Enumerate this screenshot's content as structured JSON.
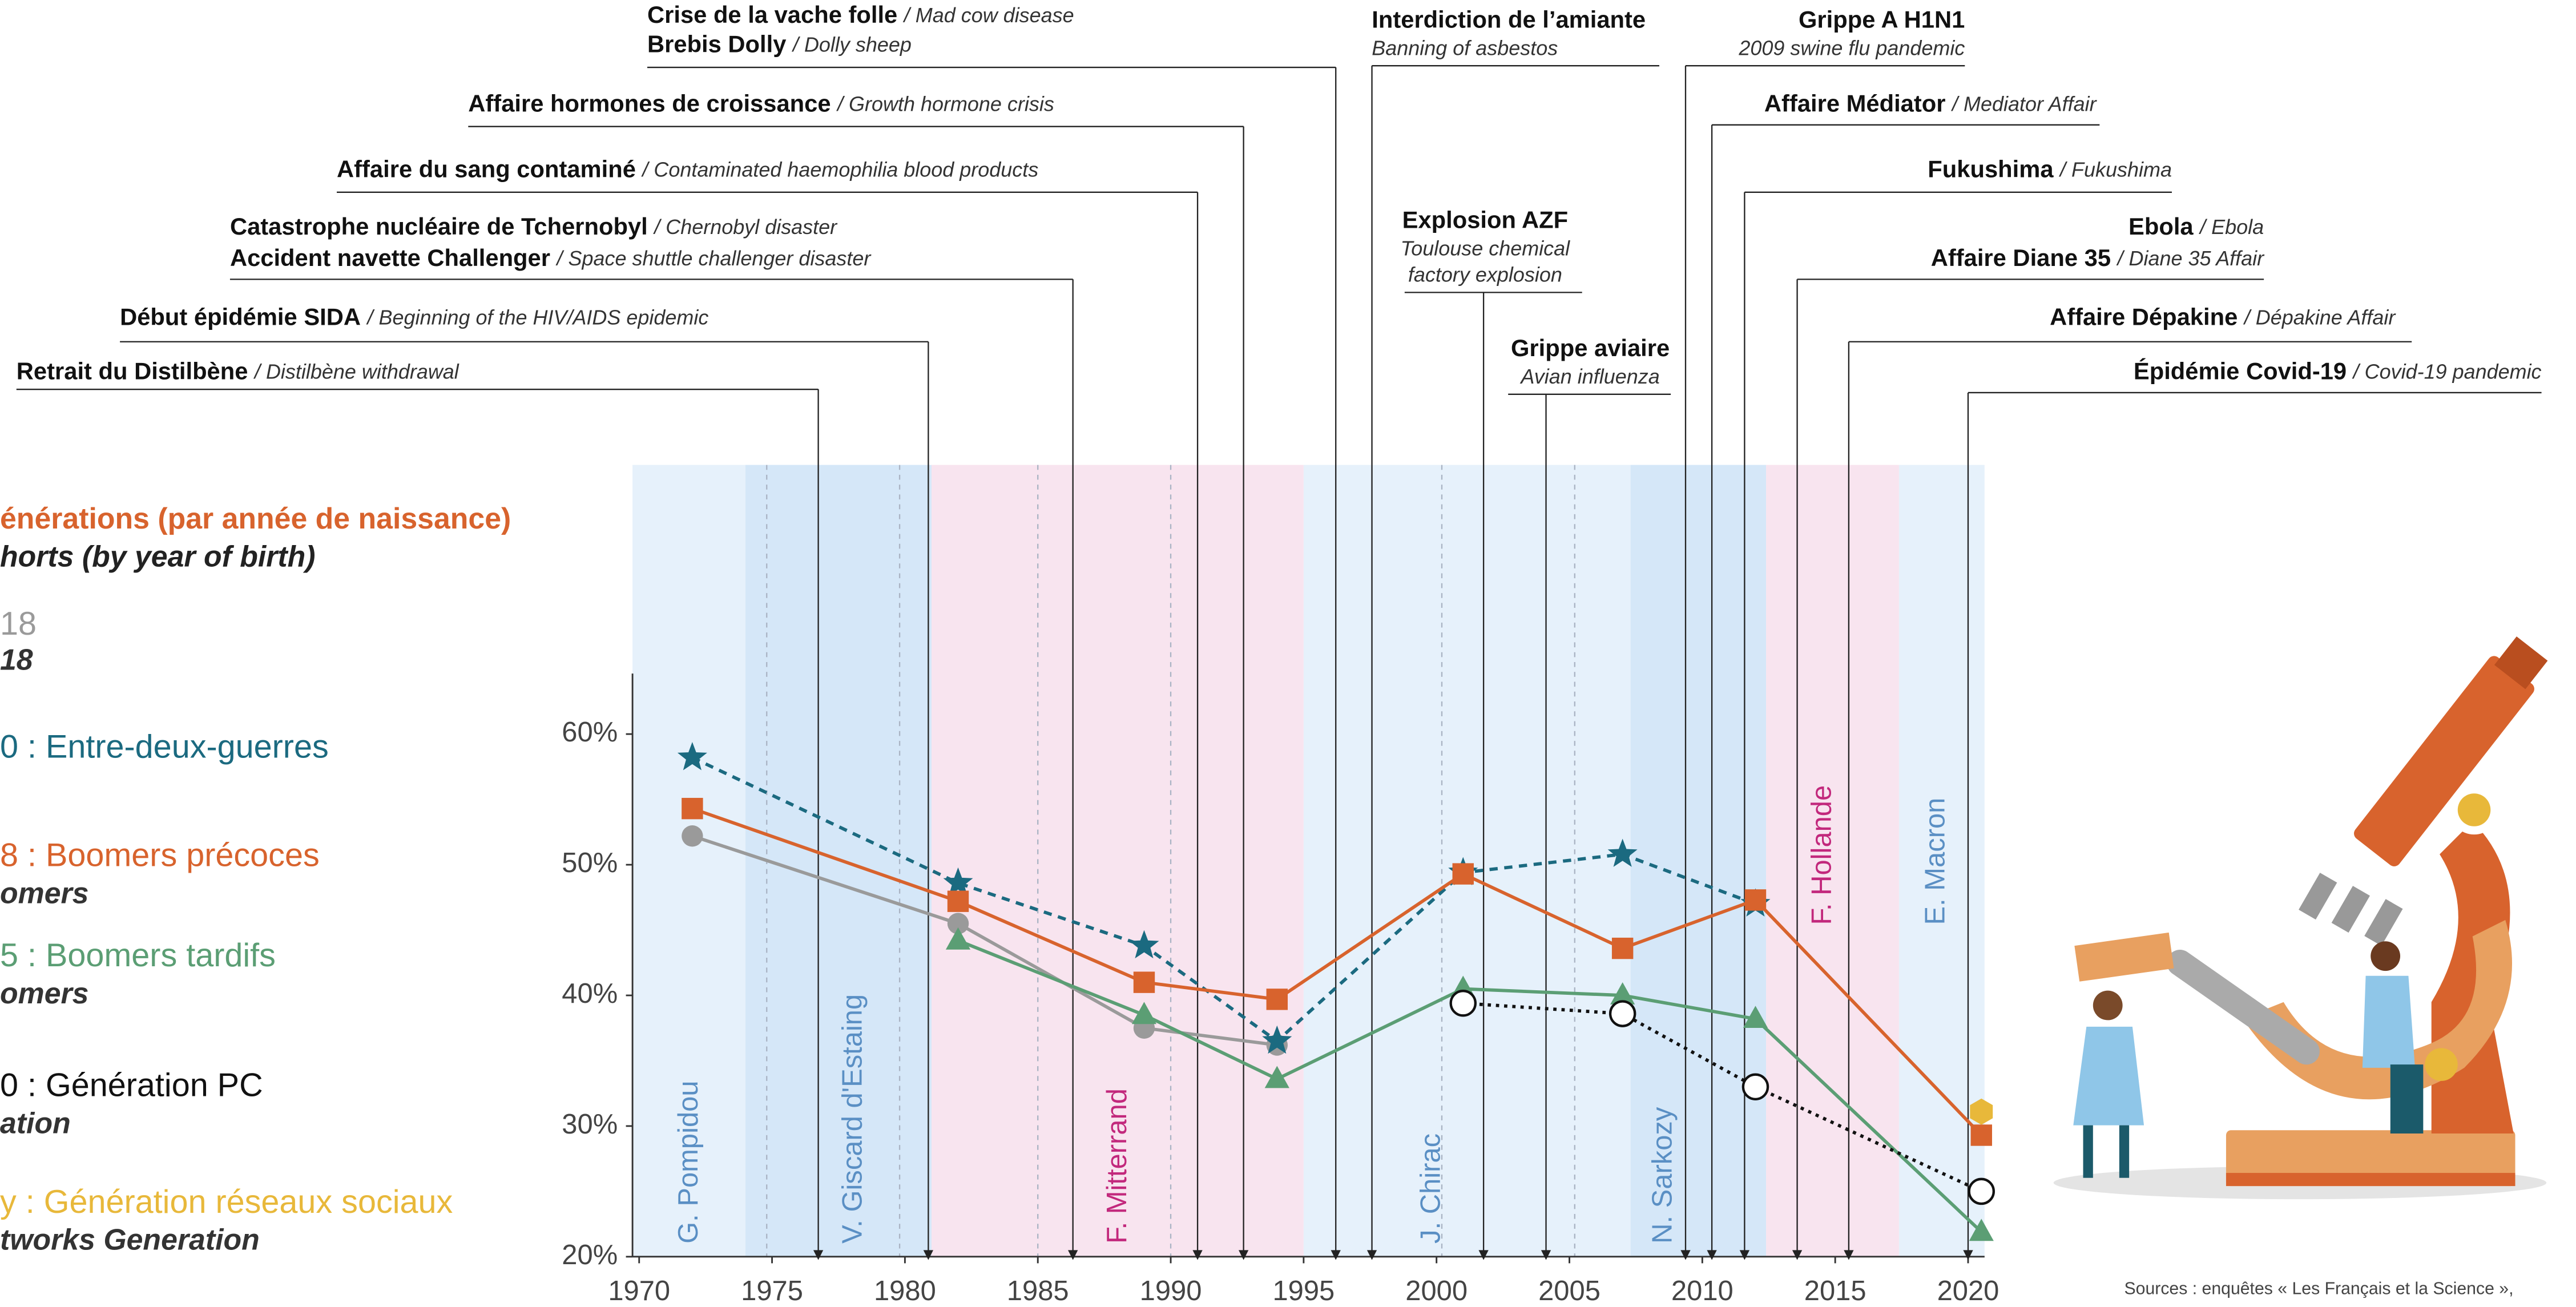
{
  "chart_data": {
    "type": "line",
    "legend_title": "énérations (par année de naissance)",
    "legend_subtitle": "horts (by year of birth)",
    "source": "Sources : enquêtes « Les Français et la Science »,",
    "x": [
      1972,
      1982,
      1989,
      1994,
      2001,
      2007,
      2012,
      2020.5
    ],
    "xlim": [
      1969.75,
      2020.62
    ],
    "xticks": [
      1970,
      1975,
      1980,
      1985,
      1990,
      1995,
      2000,
      2005,
      2010,
      2015,
      2020
    ],
    "ylim": [
      20,
      80.6
    ],
    "yticks": [
      {
        "value": 20,
        "label": "20%"
      },
      {
        "value": 30,
        "label": "30%"
      },
      {
        "value": 40,
        "label": "40%"
      },
      {
        "value": 50,
        "label": "50%"
      },
      {
        "value": 60,
        "label": "60%"
      }
    ],
    "series": [
      {
        "name": "18",
        "name_en": "18",
        "color": "#9a9a9a",
        "marker": "circle",
        "dash": "solid",
        "values": [
          52.2,
          45.5,
          37.5,
          36.2,
          null,
          null,
          null,
          null
        ]
      },
      {
        "name": "0 : Entre-deux-guerres",
        "color": "#1b6a80",
        "marker": "star",
        "dash": "dashed",
        "values": [
          58.2,
          48.6,
          43.8,
          36.5,
          49.4,
          50.8,
          47.0,
          null
        ]
      },
      {
        "name": "8 : Boomers précoces",
        "name_en": "omers",
        "color": "#d8632d",
        "marker": "square",
        "dash": "solid",
        "values": [
          54.3,
          47.2,
          41.0,
          39.7,
          49.3,
          43.6,
          47.3,
          29.3
        ]
      },
      {
        "name": "5 : Boomers tardifs",
        "name_en": "omers",
        "color": "#5b9e74",
        "marker": "triangle",
        "dash": "solid",
        "values": [
          null,
          44.2,
          38.5,
          33.6,
          40.5,
          40.0,
          38.2,
          21.9
        ]
      },
      {
        "name": "0 : Génération PC",
        "name_en": "ation",
        "color": "#111111",
        "marker": "open-circle",
        "dash": "dotted",
        "values": [
          null,
          null,
          null,
          null,
          39.4,
          38.6,
          33.0,
          25.0
        ]
      },
      {
        "name": "y : Génération réseaux sociaux",
        "name_en": "tworks Generation",
        "color": "#e8b83a",
        "marker": "hexagon",
        "dash": "solid",
        "values": [
          null,
          null,
          null,
          null,
          null,
          null,
          null,
          31.1
        ]
      }
    ],
    "presidencies": [
      {
        "name": "G. Pompidou",
        "start": 1969.75,
        "end": 1974,
        "color": "#e6f1fb",
        "label_color": "#5a8fc4"
      },
      {
        "name": "V. Giscard d'Estaing",
        "start": 1974,
        "end": 1981,
        "color": "#d5e7f8",
        "label_color": "#5a8fc4"
      },
      {
        "name": "F. Mitterrand",
        "start": 1981,
        "end": 1995,
        "color": "#f8e4ef",
        "label_color": "#c2287c"
      },
      {
        "name": "J. Chirac",
        "start": 1995,
        "end": 2007.3,
        "color": "#e6f1fb",
        "label_color": "#5a8fc4"
      },
      {
        "name": "N. Sarkozy",
        "start": 2007.3,
        "end": 2012.4,
        "color": "#d5e7f8",
        "label_color": "#5a8fc4"
      },
      {
        "name": "F. Hollande",
        "start": 2012.4,
        "end": 2017.4,
        "color": "#f8e4ef",
        "label_color": "#c2287c"
      },
      {
        "name": "E. Macron",
        "start": 2017.4,
        "end": 2020.62,
        "color": "#e6f1fb",
        "label_color": "#5a8fc4"
      }
    ],
    "reference_lines": [
      1974.8,
      1979.8,
      1985,
      1990,
      2000.2,
      2005.2
    ],
    "events": [
      {
        "year": 1976.74,
        "lines": [
          {
            "fr": "Retrait du Distilbène",
            "en": "/ Distilbène withdrawal"
          }
        ]
      },
      {
        "year": 1980.88,
        "lines": [
          {
            "fr": "Début épidémie SIDA",
            "en": "/ Beginning of the HIV/AIDS epidemic"
          }
        ]
      },
      {
        "year": 1986.32,
        "lines": [
          {
            "fr": "Catastrophe nucléaire de Tchernobyl",
            "en": "/ Chernobyl disaster"
          },
          {
            "fr": "Accident navette Challenger",
            "en": "/ Space shuttle challenger disaster"
          }
        ]
      },
      {
        "year": 1991.01,
        "lines": [
          {
            "fr": "Affaire du sang contaminé",
            "en": "/ Contaminated haemophilia blood products"
          }
        ]
      },
      {
        "year": 1992.74,
        "lines": [
          {
            "fr": "Affaire hormones de croissance",
            "en": "/ Growth hormone crisis"
          }
        ]
      },
      {
        "year": 1996.21,
        "lines": [
          {
            "fr": "Crise de la vache folle",
            "en": "/ Mad cow disease"
          },
          {
            "fr": "Brebis Dolly",
            "en": "/ Dolly sheep"
          }
        ]
      },
      {
        "year": 1997.57,
        "lines": [
          {
            "fr": "Interdiction de l’amiante"
          },
          {
            "en": "Banning of asbestos"
          }
        ]
      },
      {
        "year": 2001.77,
        "lines": [
          {
            "fr": "Explosion AZF"
          },
          {
            "en": "Toulouse chemical"
          },
          {
            "en": "factory explosion"
          }
        ]
      },
      {
        "year": 2004.12,
        "lines": [
          {
            "fr": "Grippe aviaire"
          },
          {
            "en": "Avian influenza"
          }
        ]
      },
      {
        "year": 2009.37,
        "lines": [
          {
            "fr": "Grippe A H1N1"
          },
          {
            "en": "2009 swine flu pandemic"
          }
        ]
      },
      {
        "year": 2010.36,
        "lines": [
          {
            "fr": "Affaire Médiator",
            "en": "/ Mediator Affair"
          }
        ]
      },
      {
        "year": 2011.59,
        "lines": [
          {
            "fr": "Fukushima",
            "en": "/ Fukushima"
          }
        ]
      },
      {
        "year": 2013.57,
        "lines": [
          {
            "fr": "Ebola",
            "en": "/ Ebola"
          },
          {
            "fr": "Affaire Diane 35",
            "en": "/ Diane 35 Affair"
          }
        ]
      },
      {
        "year": 2015.51,
        "lines": [
          {
            "fr": "Affaire Dépakine",
            "en": "/ Dépakine Affair"
          }
        ]
      },
      {
        "year": 2020.0,
        "lines": [
          {
            "fr": "Épidémie Covid-19",
            "en": "/ Covid-19 pandemic"
          }
        ]
      }
    ]
  }
}
